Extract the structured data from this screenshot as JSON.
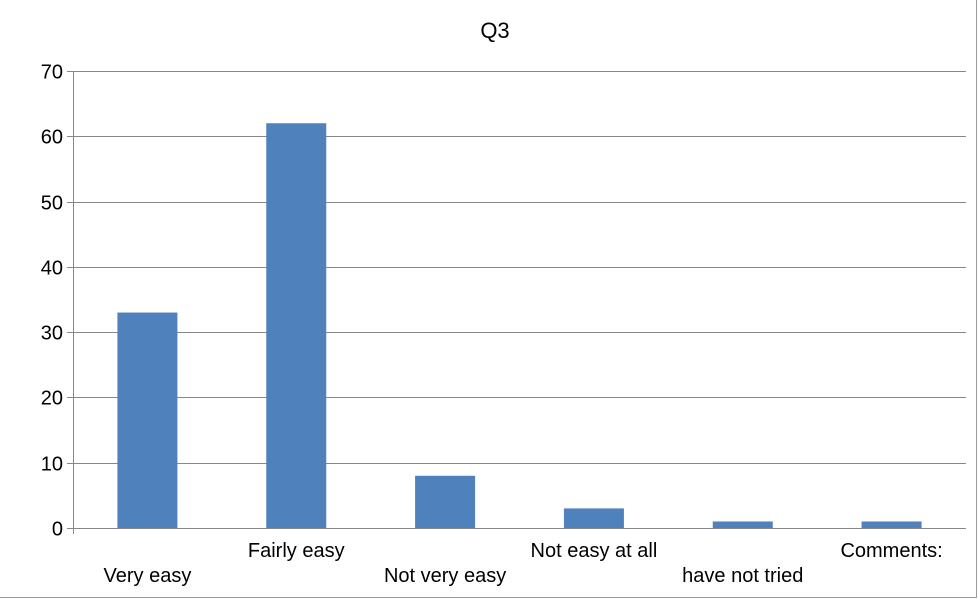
{
  "chart_data": {
    "type": "bar",
    "title": "Q3",
    "categories": [
      "Very easy",
      "Fairly easy",
      "Not very easy",
      "Not easy at all",
      "have not tried",
      "Comments:"
    ],
    "values": [
      33,
      62,
      8,
      3,
      1,
      1
    ],
    "ylim": [
      0,
      70
    ],
    "yticks": [
      0,
      10,
      20,
      30,
      40,
      50,
      60,
      70
    ],
    "grid": true,
    "legend": "none",
    "bar_color": "#4f81bd"
  }
}
